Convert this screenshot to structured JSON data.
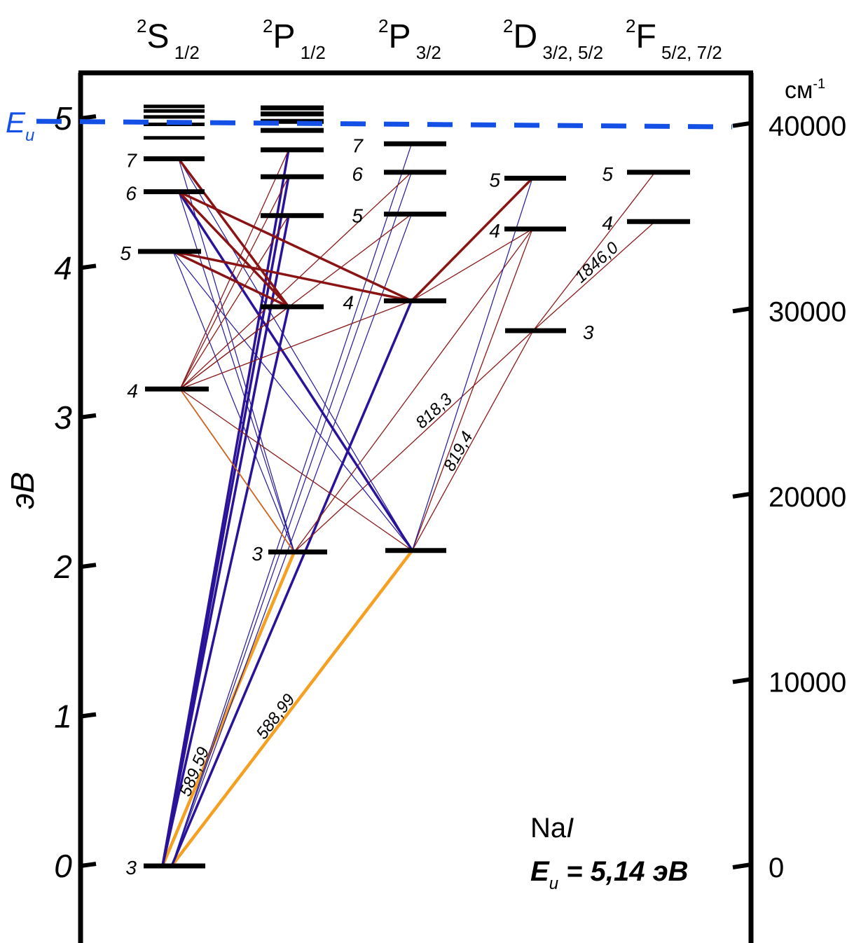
{
  "title": {
    "element": "Na",
    "roman": "I"
  },
  "ionization": {
    "symbol": "E",
    "sub": "u",
    "energy_ev": 5.14,
    "value_text": " = 5,14 эВ",
    "color": "#1450e6"
  },
  "axes": {
    "left": {
      "label": "эВ",
      "ticks": [
        {
          "value": 0,
          "text": "0"
        },
        {
          "value": 1,
          "text": "1"
        },
        {
          "value": 2,
          "text": "2"
        },
        {
          "value": 3,
          "text": "3"
        },
        {
          "value": 4,
          "text": "4"
        },
        {
          "value": 5,
          "text": "5"
        }
      ]
    },
    "right": {
      "unit": "см",
      "unit_sup": "-1",
      "ticks": [
        {
          "value": 0,
          "text": "0"
        },
        {
          "value": 10000,
          "text": "10000"
        },
        {
          "value": 20000,
          "text": "20000"
        },
        {
          "value": 30000,
          "text": "30000"
        },
        {
          "value": 40000,
          "text": "40000"
        }
      ]
    }
  },
  "terms": [
    {
      "id": "S12",
      "sup": "2",
      "letter": "S",
      "sub": "1/2"
    },
    {
      "id": "P12",
      "sup": "2",
      "letter": "P",
      "sub": "1/2"
    },
    {
      "id": "P32",
      "sup": "2",
      "letter": "P",
      "sub": "3/2"
    },
    {
      "id": "D",
      "sup": "2",
      "letter": "D",
      "sub": "3/2, 5/2"
    },
    {
      "id": "F",
      "sup": "2",
      "letter": "F",
      "sub": "5/2, 7/2"
    }
  ],
  "levels": [
    {
      "id": "S3",
      "term": "S12",
      "n": "3",
      "energy": 0.0
    },
    {
      "id": "S4",
      "term": "S12",
      "n": "4",
      "energy": 3.19
    },
    {
      "id": "S5",
      "term": "S12",
      "n": "5",
      "energy": 4.11
    },
    {
      "id": "S6",
      "term": "S12",
      "n": "6",
      "energy": 4.51
    },
    {
      "id": "S7",
      "term": "S12",
      "n": "7",
      "energy": 4.73
    },
    {
      "id": "S8",
      "term": "S12",
      "n": "",
      "energy": 4.87
    },
    {
      "id": "S9",
      "term": "S12",
      "n": "",
      "energy": 4.96
    },
    {
      "id": "S10",
      "term": "S12",
      "n": "",
      "energy": 5.01
    },
    {
      "id": "S11",
      "term": "S12",
      "n": "",
      "energy": 5.05
    },
    {
      "id": "S12x",
      "term": "S12",
      "n": "",
      "energy": 5.08
    },
    {
      "id": "P3a",
      "term": "P12",
      "n": "3",
      "energy": 2.1
    },
    {
      "id": "P4a",
      "term": "P12",
      "n": "",
      "energy": 3.74
    },
    {
      "id": "P5a",
      "term": "P12",
      "n": "",
      "energy": 4.35
    },
    {
      "id": "P6a",
      "term": "P12",
      "n": "",
      "energy": 4.61
    },
    {
      "id": "P7a",
      "term": "P12",
      "n": "",
      "energy": 4.79
    },
    {
      "id": "P8a",
      "term": "P12",
      "n": "",
      "energy": 4.92
    },
    {
      "id": "P9a",
      "term": "P12",
      "n": "",
      "energy": 4.98
    },
    {
      "id": "P10a",
      "term": "P12",
      "n": "",
      "energy": 5.03
    },
    {
      "id": "P11a",
      "term": "P12",
      "n": "",
      "energy": 5.07
    },
    {
      "id": "P3b",
      "term": "P32",
      "n": "",
      "energy": 2.11
    },
    {
      "id": "P4b",
      "term": "P32",
      "n": "4",
      "energy": 3.78
    },
    {
      "id": "P5b",
      "term": "P32",
      "n": "5",
      "energy": 4.36
    },
    {
      "id": "P6b",
      "term": "P32",
      "n": "6",
      "energy": 4.64
    },
    {
      "id": "P7b",
      "term": "P32",
      "n": "7",
      "energy": 4.83
    },
    {
      "id": "D3",
      "term": "D",
      "n": "3",
      "energy": 3.58
    },
    {
      "id": "D4",
      "term": "D",
      "n": "4",
      "energy": 4.26
    },
    {
      "id": "D5",
      "term": "D",
      "n": "5",
      "energy": 4.6
    },
    {
      "id": "F4",
      "term": "F",
      "n": "4",
      "energy": 4.31
    },
    {
      "id": "F5",
      "term": "F",
      "n": "5",
      "energy": 4.64
    }
  ],
  "transitions": [
    {
      "from": "S3",
      "to": "P3a",
      "type": "resonance",
      "label": "589,59"
    },
    {
      "from": "S3",
      "to": "P3b",
      "type": "resonance",
      "label": "588,99"
    },
    {
      "from": "S3",
      "to": "P4a",
      "type": "strongblue"
    },
    {
      "from": "S3",
      "to": "P5a",
      "type": "strongblue"
    },
    {
      "from": "S3",
      "to": "P6a",
      "type": "strongblue"
    },
    {
      "from": "S3",
      "to": "P7a",
      "type": "strongblue"
    },
    {
      "from": "S3",
      "to": "P4b",
      "type": "strongblue"
    },
    {
      "from": "S3",
      "to": "P5b",
      "type": "blue"
    },
    {
      "from": "S3",
      "to": "P6b",
      "type": "blue"
    },
    {
      "from": "S3",
      "to": "P7b",
      "type": "blue"
    },
    {
      "from": "P3a",
      "to": "S5",
      "type": "blue"
    },
    {
      "from": "P3a",
      "to": "S6",
      "type": "blue"
    },
    {
      "from": "P3a",
      "to": "S7",
      "type": "blue"
    },
    {
      "from": "P3a",
      "to": "D3",
      "type": "red",
      "label": "818,3"
    },
    {
      "from": "P3a",
      "to": "D4",
      "type": "red"
    },
    {
      "from": "P3b",
      "to": "S5",
      "type": "blue"
    },
    {
      "from": "P3b",
      "to": "S6",
      "type": "strongblue"
    },
    {
      "from": "P3b",
      "to": "S7",
      "type": "blue"
    },
    {
      "from": "P3b",
      "to": "D3",
      "type": "red",
      "label": "819,4"
    },
    {
      "from": "P3b",
      "to": "D4",
      "type": "red"
    },
    {
      "from": "P3b",
      "to": "D5",
      "type": "blue"
    },
    {
      "from": "P3b",
      "to": "S4",
      "type": "red"
    },
    {
      "from": "S4",
      "to": "P3a",
      "type": "orange"
    },
    {
      "from": "S4",
      "to": "P4a",
      "type": "red"
    },
    {
      "from": "S4",
      "to": "P5a",
      "type": "red"
    },
    {
      "from": "S4",
      "to": "P6a",
      "type": "red"
    },
    {
      "from": "S4",
      "to": "P7a",
      "type": "red"
    },
    {
      "from": "S4",
      "to": "P4b",
      "type": "red"
    },
    {
      "from": "S4",
      "to": "P5b",
      "type": "red"
    },
    {
      "from": "S4",
      "to": "P6b",
      "type": "red"
    },
    {
      "from": "S5",
      "to": "P4a",
      "type": "strongred"
    },
    {
      "from": "S5",
      "to": "P4b",
      "type": "strongred"
    },
    {
      "from": "S6",
      "to": "P4a",
      "type": "strongred"
    },
    {
      "from": "S6",
      "to": "P4b",
      "type": "strongred"
    },
    {
      "from": "S7",
      "to": "P4a",
      "type": "strongred"
    },
    {
      "from": "P4b",
      "to": "D5",
      "type": "strongred"
    },
    {
      "from": "P4b",
      "to": "D4",
      "type": "red"
    },
    {
      "from": "D3",
      "to": "F4",
      "type": "red",
      "label": "1846,0"
    },
    {
      "from": "D3",
      "to": "F5",
      "type": "red"
    }
  ],
  "colors": {
    "resonance": "#f5a020",
    "strongblue": "#2b1399",
    "blue": "#22179a",
    "strongred": "#8a1414",
    "red": "#8a1a1a",
    "orange": "#c8641e",
    "level": "#000000"
  }
}
